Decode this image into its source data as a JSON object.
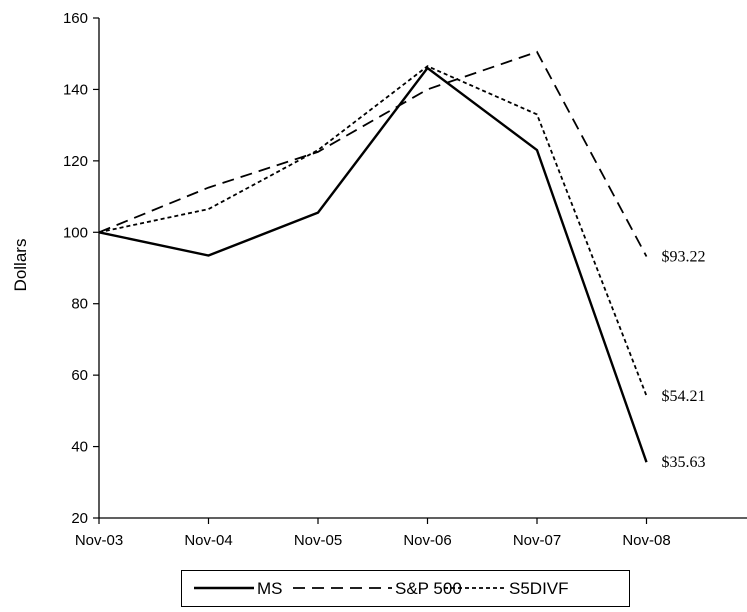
{
  "chart_data": {
    "type": "line",
    "title": "",
    "xlabel": "",
    "ylabel": "Dollars",
    "ylim": [
      20,
      160
    ],
    "yticks": [
      20,
      40,
      60,
      80,
      100,
      120,
      140,
      160
    ],
    "x": [
      "Nov-03",
      "Nov-04",
      "Nov-05",
      "Nov-06",
      "Nov-07",
      "Nov-08"
    ],
    "grid": false,
    "legend_position": "bottom",
    "series": [
      {
        "name": "MS",
        "style": "solid",
        "values": [
          100,
          93.5,
          105.5,
          146,
          123,
          35.63
        ],
        "end_label": "$35.63"
      },
      {
        "name": "S&P 500",
        "style": "dashed",
        "values": [
          100,
          112.5,
          122.5,
          140,
          150.5,
          93.22
        ],
        "end_label": "$93.22"
      },
      {
        "name": "S5DIVF",
        "style": "dotted",
        "values": [
          100,
          106.5,
          123,
          146.5,
          133,
          54.21
        ],
        "end_label": "$54.21"
      }
    ]
  }
}
